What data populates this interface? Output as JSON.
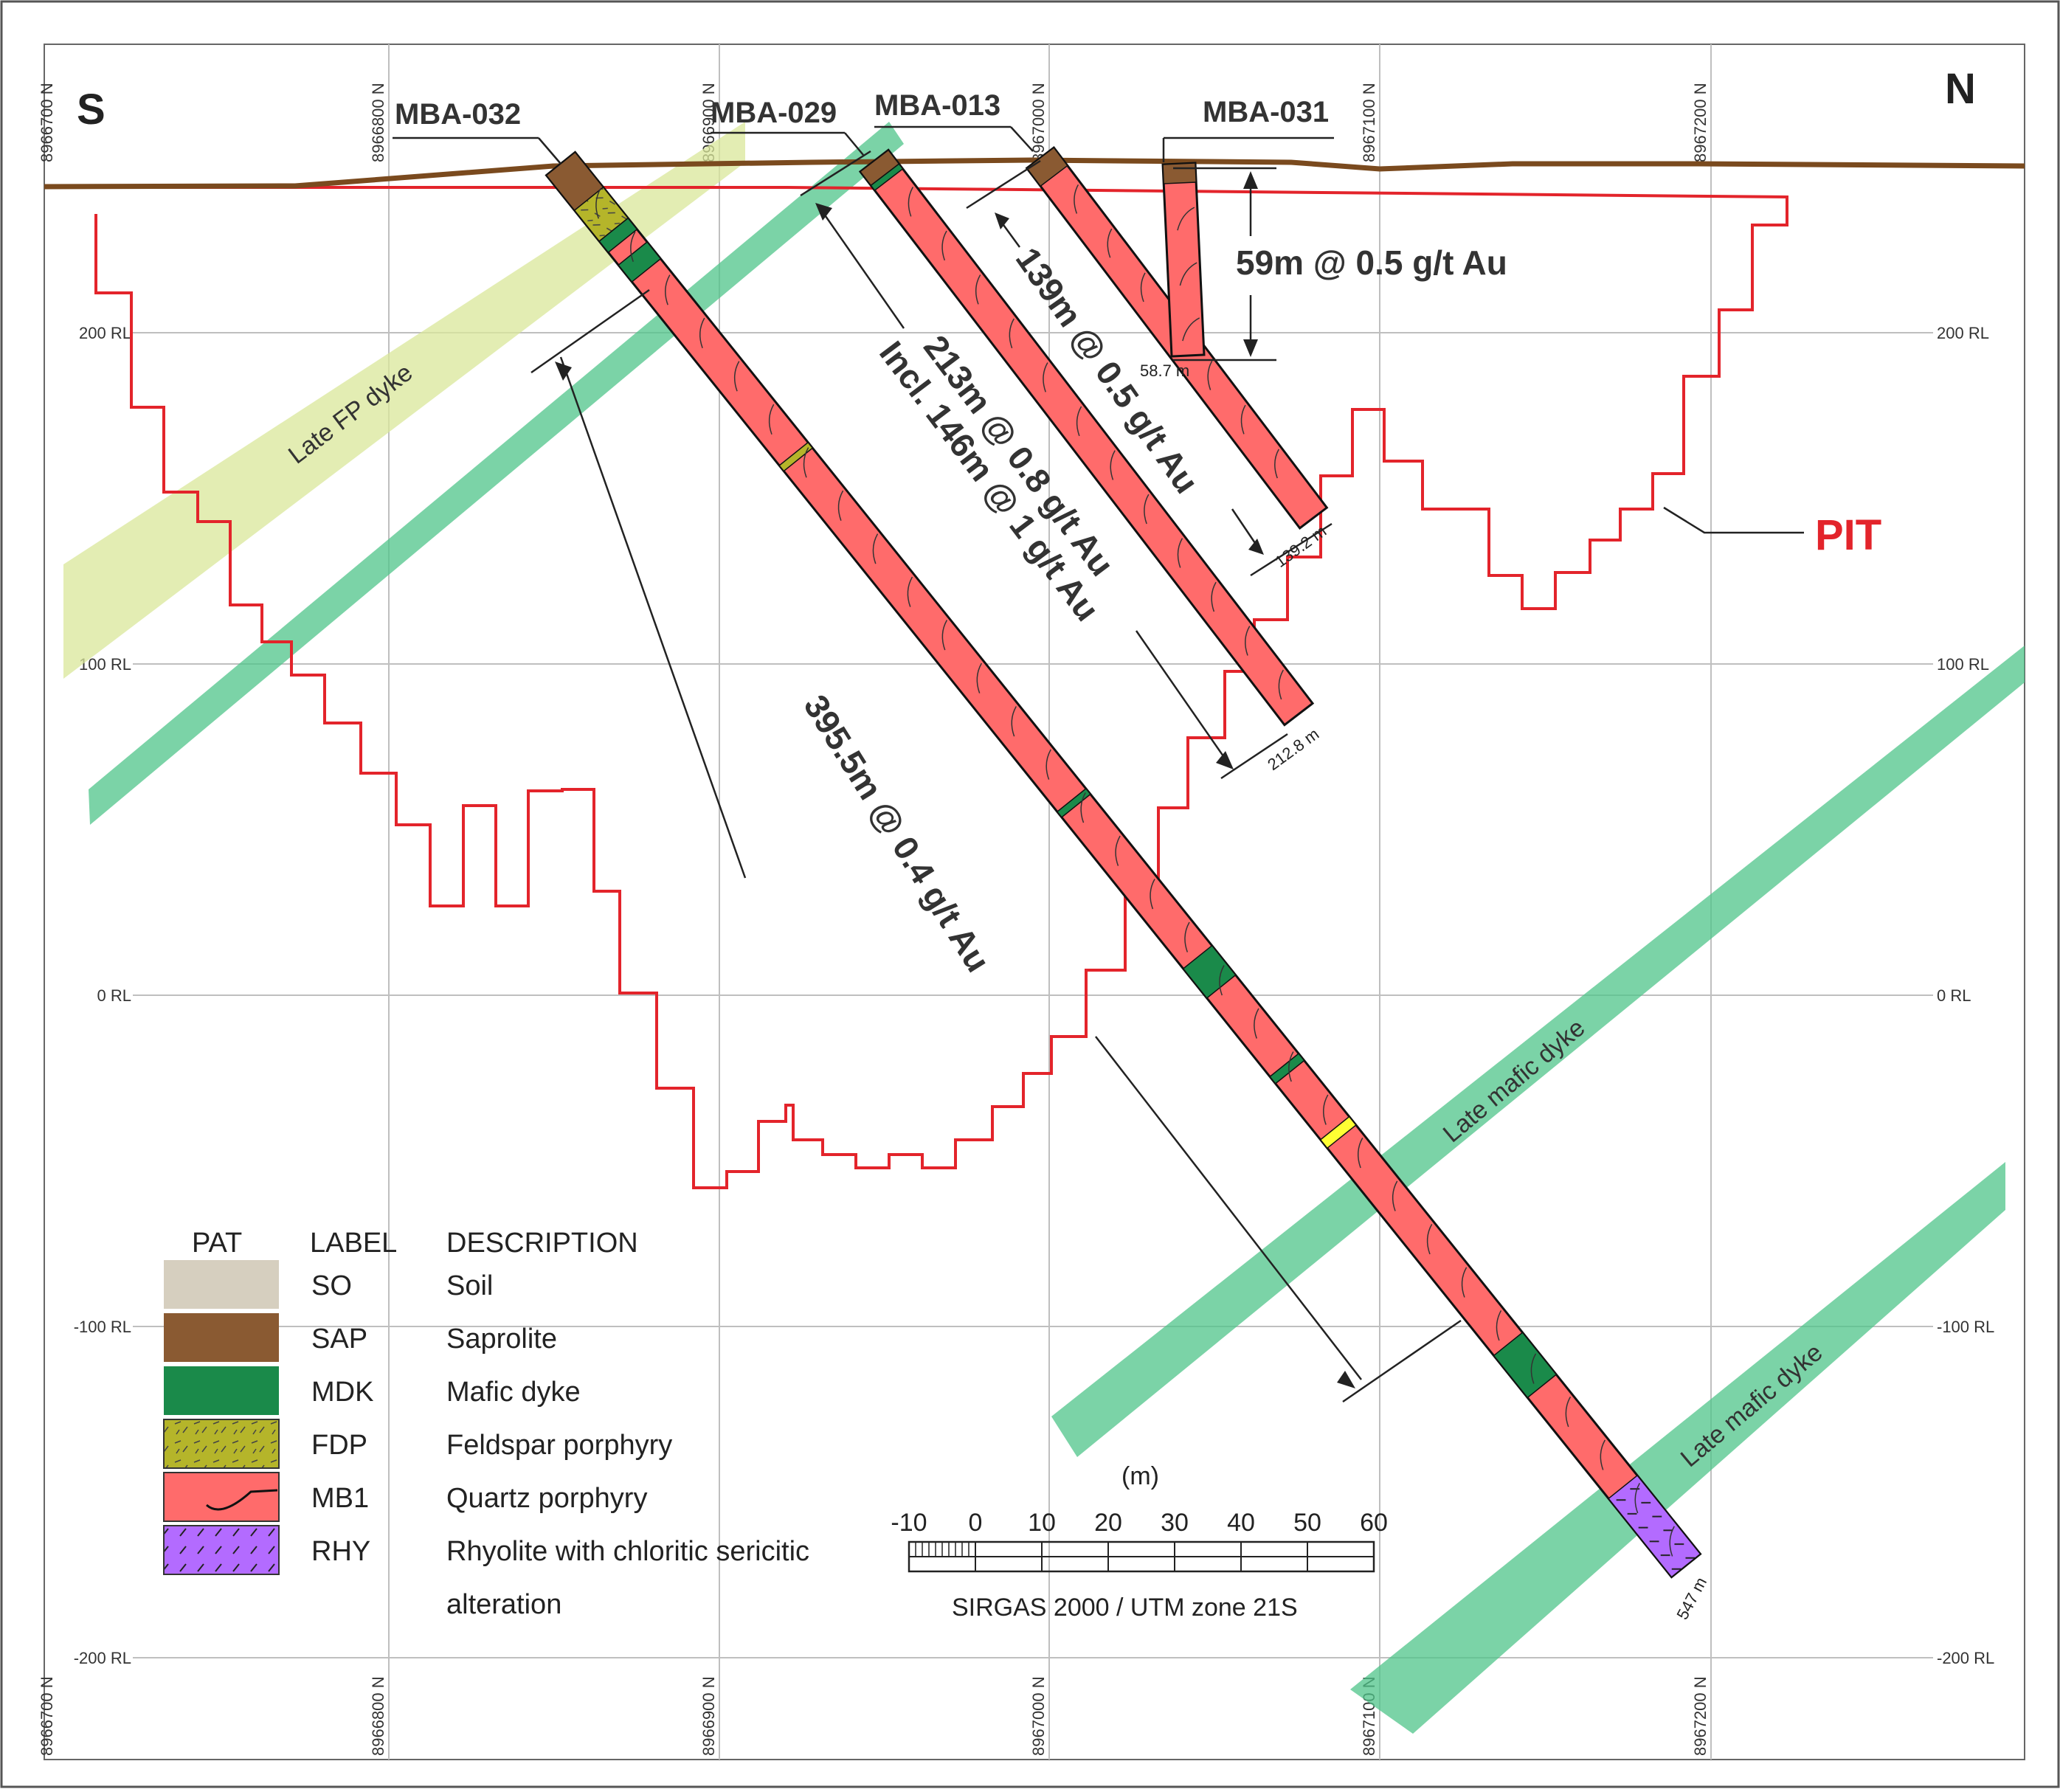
{
  "compass": {
    "south": "S",
    "north": "N"
  },
  "northings": [
    "8966700 N",
    "8966800 N",
    "8966900 N",
    "8967000 N",
    "8967100 N",
    "8967200 N"
  ],
  "rl_levels": [
    "200 RL",
    "100 RL",
    "0 RL",
    "-100 RL",
    "-200 RL"
  ],
  "holes": [
    {
      "id": "MBA-032",
      "end_depth": "547 m",
      "intercept": "395.5m @ 0.4 g/t Au"
    },
    {
      "id": "MBA-029",
      "end_depth": "212.8 m",
      "intercept": "213m @ 0.8 g/t Au",
      "sub_intercept": "Incl. 146m @ 1 g/t Au"
    },
    {
      "id": "MBA-013",
      "end_depth": "139.2 m",
      "intercept": "139m @ 0.5 g/t Au"
    },
    {
      "id": "MBA-031",
      "end_depth": "58.7 m",
      "intercept": "59m @ 0.5 g/t Au"
    }
  ],
  "labels": {
    "pit": "PIT",
    "late_fp_dyke": "Late FP dyke",
    "late_mafic_dyke_1": "Late mafic dyke",
    "late_mafic_dyke_2": "Late mafic dyke"
  },
  "legend": {
    "headers": {
      "pat": "PAT",
      "label": "LABEL",
      "description": "DESCRIPTION"
    },
    "items": [
      {
        "label": "SO",
        "description": "Soil",
        "color": "#d6cfbf"
      },
      {
        "label": "SAP",
        "description": "Saprolite",
        "color": "#8a5a32"
      },
      {
        "label": "MDK",
        "description": "Mafic dyke",
        "color": "#1a8a4a"
      },
      {
        "label": "FDP",
        "description": "Feldspar porphyry",
        "color": "#b5b52a"
      },
      {
        "label": "MB1",
        "description": "Quartz porphyry",
        "color": "#ff6b6b"
      },
      {
        "label": "RHY",
        "description": "Rhyolite with chloritic sericitic",
        "description_line2": "alteration",
        "color": "#b36bff"
      }
    ]
  },
  "scale": {
    "unit": "(m)",
    "ticks": [
      "-10",
      "0",
      "10",
      "20",
      "30",
      "40",
      "50",
      "60"
    ],
    "crs": "SIRGAS 2000 / UTM zone 21S"
  },
  "colors": {
    "pit": "#e3242b",
    "topography": "#7a4a1e",
    "mafic_dyke": "#4fc48a",
    "fp_dyke": "#d9e79a",
    "quartz_porphyry": "#ff6b6b",
    "saprolite": "#8a5a32",
    "mafic_dyke_log": "#1a8a4a",
    "rhyolite": "#b36bff",
    "grid": "#bfbfbf"
  }
}
